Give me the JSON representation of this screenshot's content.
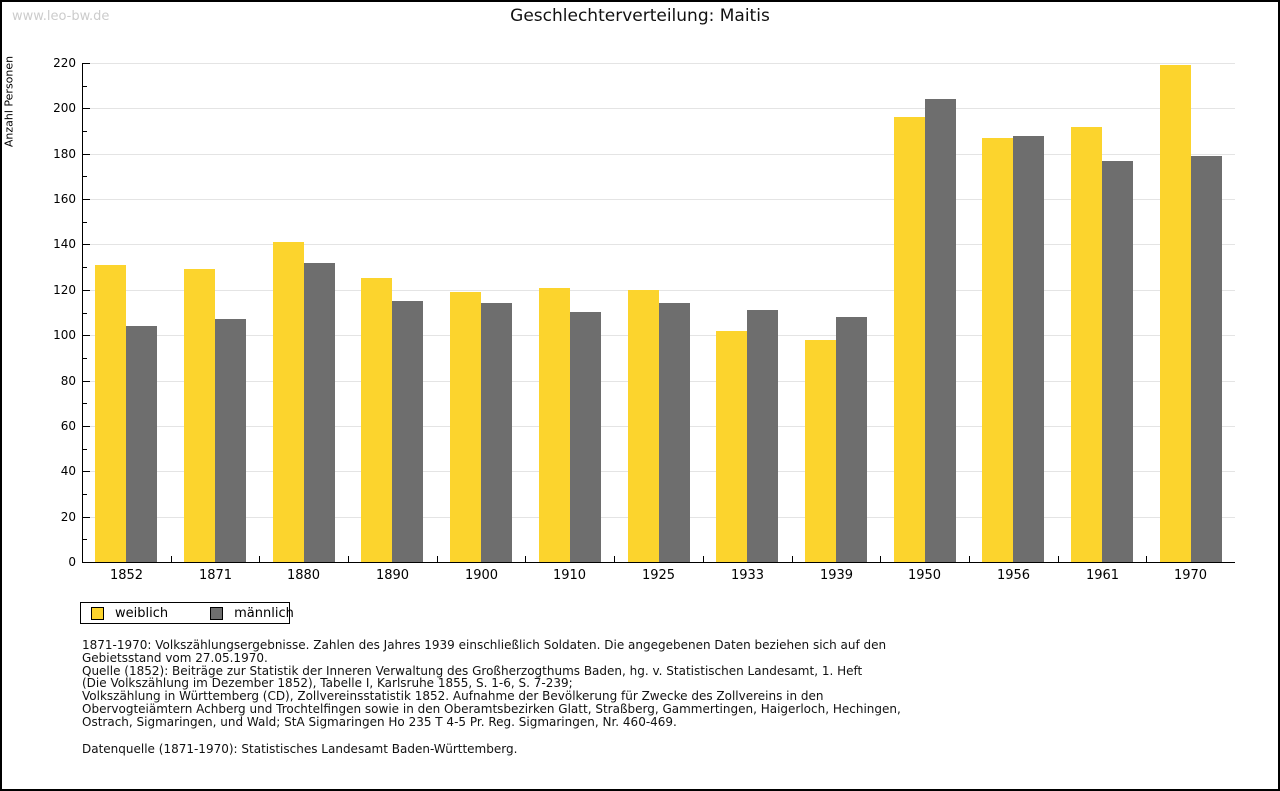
{
  "watermark": "www.leo-bw.de",
  "title": "Geschlechterverteilung: Maitis",
  "chart_data": {
    "type": "bar",
    "title": "Geschlechterverteilung: Maitis",
    "xlabel": "",
    "ylabel": "Anzahl Personen",
    "ylim": [
      0,
      220
    ],
    "y_major_step": 20,
    "y_minor_step": 10,
    "grid": true,
    "legend_position": "bottom-left",
    "categories": [
      "1852",
      "1871",
      "1880",
      "1890",
      "1900",
      "1910",
      "1925",
      "1933",
      "1939",
      "1950",
      "1956",
      "1961",
      "1970"
    ],
    "series": [
      {
        "name": "weiblich",
        "color": "#FCD42D",
        "values": [
          131,
          129,
          141,
          125,
          119,
          121,
          120,
          102,
          98,
          196,
          187,
          192,
          219
        ]
      },
      {
        "name": "männlich",
        "color": "#6E6E6E",
        "values": [
          104,
          107,
          132,
          115,
          114,
          110,
          114,
          111,
          108,
          204,
          188,
          177,
          179
        ]
      }
    ]
  },
  "colors": {
    "grid": "#E4E4E4",
    "axis": "#000000",
    "watermark": "#CCCCCC"
  },
  "footnotes": {
    "notes": [
      "1871-1970: Volkszählungsergebnisse. Zahlen des Jahres 1939 einschließlich Soldaten. Die angegebenen Daten beziehen sich auf den",
      "Gebietsstand vom 27.05.1970.",
      "Quelle (1852): Beiträge zur Statistik der Inneren Verwaltung des Großherzogthums Baden, hg. v. Statistischen Landesamt, 1. Heft",
      "(Die Volkszählung im Dezember 1852), Tabelle I, Karlsruhe 1855, S. 1-6, S. 7-239;",
      "Volkszählung in Württemberg (CD), Zollvereinsstatistik 1852. Aufnahme der Bevölkerung für Zwecke des Zollvereins in den",
      "Obervogteiämtern Achberg und Trochtelfingen sowie in den Oberamtsbezirken Glatt, Straßberg, Gammertingen, Haigerloch, Hechingen,",
      "Ostrach, Sigmaringen, und Wald; StA Sigmaringen Ho 235 T 4-5 Pr. Reg. Sigmaringen, Nr. 460-469."
    ],
    "source": "Datenquelle (1871-1970): Statistisches Landesamt Baden-Württemberg."
  }
}
